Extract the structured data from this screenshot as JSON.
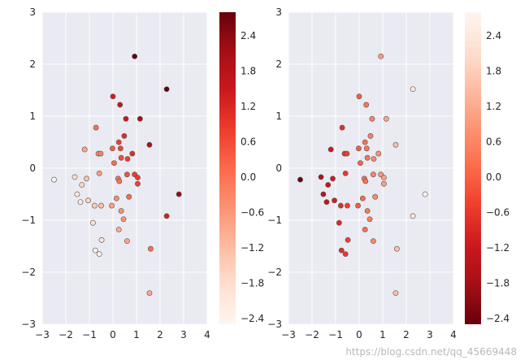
{
  "watermark": "https://blog.csdn.net/qq_45669448",
  "chart_data": [
    {
      "type": "scatter",
      "colormap": "Reds",
      "color_low": "#fff5f0",
      "color_high": "#67000d",
      "xlim": [
        -3,
        4
      ],
      "ylim": [
        -3,
        3
      ],
      "xticks": [
        "−3",
        "−2",
        "−1",
        "0",
        "1",
        "2",
        "3",
        "4"
      ],
      "yticks": [
        "−3",
        "−2",
        "−1",
        "0",
        "1",
        "2",
        "3"
      ],
      "colorbar": {
        "range": [
          -2.5,
          2.8
        ],
        "ticks": [
          "−2.4",
          "−1.8",
          "−1.2",
          "−0.6",
          "0.0",
          "0.6",
          "1.2",
          "1.8",
          "2.4"
        ]
      },
      "grid": true,
      "c_from": "x+y"
    },
    {
      "type": "scatter",
      "colormap": "Reds_r",
      "color_low": "#67000d",
      "color_high": "#fff5f0",
      "xlim": [
        -3,
        4
      ],
      "ylim": [
        -3,
        3
      ],
      "xticks": [
        "−3",
        "−2",
        "−1",
        "0",
        "1",
        "2",
        "3",
        "4"
      ],
      "yticks": [
        "−3",
        "−2",
        "−1",
        "0",
        "1",
        "2",
        "3"
      ],
      "colorbar": {
        "range": [
          -2.5,
          2.8
        ],
        "ticks": [
          "−2.4",
          "−1.8",
          "−1.2",
          "−0.6",
          "0.0",
          "0.6",
          "1.2",
          "1.8",
          "2.4"
        ]
      },
      "grid": true,
      "c_from": "x"
    }
  ],
  "points": [
    [
      -2.5,
      -0.22
    ],
    [
      -1.62,
      -0.17
    ],
    [
      -1.52,
      -0.5
    ],
    [
      -1.2,
      0.36
    ],
    [
      -1.32,
      -0.32
    ],
    [
      -1.12,
      -0.2
    ],
    [
      -1.38,
      -0.65
    ],
    [
      -1.05,
      -0.62
    ],
    [
      -0.78,
      -0.72
    ],
    [
      -0.72,
      0.78
    ],
    [
      -0.62,
      0.28
    ],
    [
      -0.52,
      0.28
    ],
    [
      -0.58,
      -0.1
    ],
    [
      -0.85,
      -1.05
    ],
    [
      -0.75,
      -1.58
    ],
    [
      -0.58,
      -1.65
    ],
    [
      -0.48,
      -1.38
    ],
    [
      -0.5,
      -0.72
    ],
    [
      -0.05,
      -0.72
    ],
    [
      0.0,
      1.38
    ],
    [
      -0.02,
      0.38
    ],
    [
      0.05,
      0.1
    ],
    [
      0.25,
      0.5
    ],
    [
      0.32,
      0.38
    ],
    [
      0.3,
      1.22
    ],
    [
      0.35,
      0.2
    ],
    [
      0.22,
      -0.2
    ],
    [
      0.27,
      -0.25
    ],
    [
      0.15,
      -0.58
    ],
    [
      0.35,
      -0.82
    ],
    [
      0.25,
      -1.18
    ],
    [
      0.45,
      -0.98
    ],
    [
      0.48,
      0.62
    ],
    [
      0.55,
      0.95
    ],
    [
      0.62,
      0.18
    ],
    [
      0.6,
      -0.12
    ],
    [
      0.68,
      -0.55
    ],
    [
      0.6,
      -1.4
    ],
    [
      0.82,
      0.28
    ],
    [
      0.92,
      2.15
    ],
    [
      0.92,
      -0.12
    ],
    [
      1.05,
      -0.18
    ],
    [
      1.05,
      -0.3
    ],
    [
      1.15,
      0.95
    ],
    [
      1.55,
      0.45
    ],
    [
      1.6,
      -1.55
    ],
    [
      1.55,
      -2.4
    ],
    [
      2.28,
      1.52
    ],
    [
      2.28,
      -0.92
    ],
    [
      2.8,
      -0.5
    ]
  ]
}
